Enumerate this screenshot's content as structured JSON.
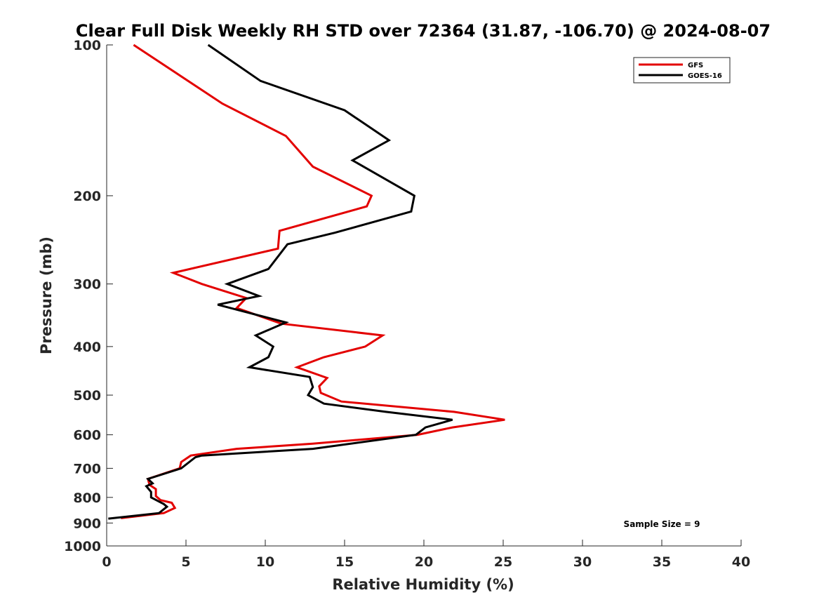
{
  "chart_data": {
    "type": "line",
    "title": "Clear Full Disk Weekly RH STD over 72364 (31.87, -106.70) @ 2024-08-07",
    "xlabel": "Relative Humidity (%)",
    "ylabel": "Pressure (mb)",
    "xlim": [
      0,
      40
    ],
    "ylim": [
      100,
      1000
    ],
    "y_scale": "log",
    "y_reversed": true,
    "x_ticks": [
      "0",
      "5",
      "10",
      "15",
      "20",
      "25",
      "30",
      "35",
      "40"
    ],
    "y_ticks": [
      "100",
      "200",
      "300",
      "400",
      "500",
      "600",
      "700",
      "800",
      "900",
      "1000"
    ],
    "legend_position": "top-right",
    "grid": false,
    "annotation": "Sample Size = 9",
    "series": [
      {
        "name": "GFS",
        "color": "#e30000",
        "points": [
          [
            1.7,
            100
          ],
          [
            7.3,
            131
          ],
          [
            11.3,
            152
          ],
          [
            13.0,
            175
          ],
          [
            16.7,
            200
          ],
          [
            16.4,
            210
          ],
          [
            10.9,
            235
          ],
          [
            10.8,
            255
          ],
          [
            4.2,
            285
          ],
          [
            6.0,
            300
          ],
          [
            8.8,
            320
          ],
          [
            8.2,
            335
          ],
          [
            11.0,
            360
          ],
          [
            17.4,
            380
          ],
          [
            16.3,
            400
          ],
          [
            13.7,
            420
          ],
          [
            12.0,
            440
          ],
          [
            13.9,
            462
          ],
          [
            13.4,
            480
          ],
          [
            13.5,
            495
          ],
          [
            14.8,
            515
          ],
          [
            21.9,
            540
          ],
          [
            25.1,
            560
          ],
          [
            21.8,
            580
          ],
          [
            19.6,
            600
          ],
          [
            13.0,
            625
          ],
          [
            8.2,
            640
          ],
          [
            5.3,
            660
          ],
          [
            4.7,
            680
          ],
          [
            4.6,
            700
          ],
          [
            2.6,
            735
          ],
          [
            2.7,
            755
          ],
          [
            3.1,
            770
          ],
          [
            3.1,
            795
          ],
          [
            3.4,
            810
          ],
          [
            4.1,
            820
          ],
          [
            4.3,
            840
          ],
          [
            3.6,
            860
          ],
          [
            0.9,
            880
          ]
        ]
      },
      {
        "name": "GOES-16",
        "color": "#000000",
        "points": [
          [
            6.4,
            100
          ],
          [
            9.7,
            118
          ],
          [
            15.0,
            135
          ],
          [
            17.8,
            155
          ],
          [
            15.5,
            170
          ],
          [
            19.4,
            200
          ],
          [
            19.2,
            215
          ],
          [
            14.4,
            237
          ],
          [
            11.4,
            250
          ],
          [
            10.2,
            280
          ],
          [
            7.6,
            300
          ],
          [
            9.6,
            317
          ],
          [
            7.0,
            330
          ],
          [
            11.3,
            358
          ],
          [
            9.4,
            380
          ],
          [
            10.5,
            400
          ],
          [
            10.2,
            420
          ],
          [
            9.0,
            440
          ],
          [
            12.8,
            460
          ],
          [
            13.0,
            482
          ],
          [
            12.7,
            500
          ],
          [
            13.7,
            520
          ],
          [
            17.6,
            540
          ],
          [
            21.8,
            560
          ],
          [
            20.1,
            580
          ],
          [
            19.5,
            600
          ],
          [
            13.0,
            640
          ],
          [
            6.0,
            660
          ],
          [
            5.6,
            665
          ],
          [
            4.7,
            700
          ],
          [
            2.6,
            735
          ],
          [
            2.9,
            750
          ],
          [
            2.5,
            760
          ],
          [
            2.8,
            780
          ],
          [
            2.8,
            800
          ],
          [
            3.6,
            825
          ],
          [
            3.8,
            835
          ],
          [
            3.3,
            860
          ],
          [
            0.1,
            882
          ]
        ]
      }
    ]
  }
}
